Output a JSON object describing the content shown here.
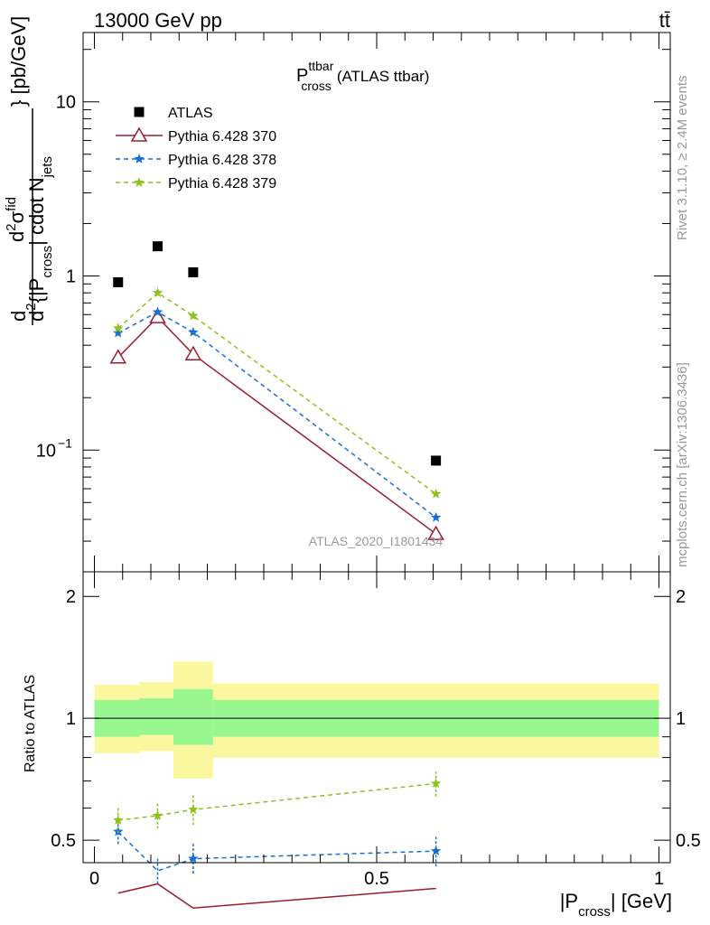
{
  "header": {
    "energy": "13000 GeV pp",
    "process": "tt̄"
  },
  "side": {
    "rivet": "Rivet 3.1.10, ≥ 2.4M events",
    "mcplots": "mcplots.cern.ch [arXiv:1306.3436]"
  },
  "plot_title": {
    "main": "P",
    "sup": "ttbar",
    "sub": "cross",
    "tail": "(ATLAS ttbar)"
  },
  "analysis_label": "ATLAS_2020_I1801434",
  "xlabel": {
    "pre": "|P",
    "sub": "cross",
    "post": "| [GeV]"
  },
  "ylabel_main": {
    "d_top": "d",
    "num_sup": "2",
    "num_sigma": "σ",
    "num_sigma_sup": "fid",
    "den_d": "d",
    "den_sup": "2",
    "den_text1": "{|P",
    "den_sub1": "cross",
    "den_text2": "| cdot N",
    "den_sub2": "jets",
    "tail": "} [pb/GeV]"
  },
  "ylabel_ratio": "Ratio to ATLAS",
  "main_ticks": {
    "major": [
      {
        "value": 0.1,
        "base": "10",
        "exp": "−1"
      },
      {
        "value": 1,
        "label": "1"
      },
      {
        "value": 10,
        "label": "10"
      }
    ]
  },
  "ratio_ticks": [
    {
      "value": 0.5,
      "label": "0.5"
    },
    {
      "value": 1,
      "label": "1"
    },
    {
      "value": 2,
      "label": "2"
    }
  ],
  "x_ticks": [
    {
      "value": 0,
      "label": "0"
    },
    {
      "value": 0.5,
      "label": "0.5"
    },
    {
      "value": 1,
      "label": "1"
    }
  ],
  "colors": {
    "atlas": "#000000",
    "p370": "#9b1b30",
    "p378": "#1a6fd6",
    "p379": "#8dc21f",
    "band_inner": "#99f78f",
    "band_outer": "#fbf79f"
  },
  "chart_data": {
    "type": "scatter",
    "x_range": [
      -0.02,
      1.02
    ],
    "main": {
      "yscale": "log",
      "ylim": [
        0.02,
        25
      ]
    },
    "ratio": {
      "yscale": "log",
      "ylim": [
        0.44,
        2.3
      ]
    },
    "legend_position": "top-left",
    "series": [
      {
        "name": "ATLAS",
        "marker": "square",
        "x": [
          0.042,
          0.112,
          0.175,
          0.605
        ],
        "y": [
          0.92,
          1.48,
          1.05,
          0.087
        ]
      },
      {
        "name": "Pythia 6.428 370",
        "marker": "triangle",
        "line": "solid",
        "x": [
          0.042,
          0.112,
          0.175,
          0.605
        ],
        "y": [
          0.34,
          0.58,
          0.355,
          0.033
        ],
        "ratio": [
          0.37,
          0.39,
          0.34,
          0.38
        ]
      },
      {
        "name": "Pythia 6.428 378",
        "marker": "star",
        "line": "dashed",
        "x": [
          0.042,
          0.112,
          0.175,
          0.605
        ],
        "y": [
          0.47,
          0.62,
          0.475,
          0.041
        ],
        "ratio": [
          0.525,
          0.42,
          0.45,
          0.47
        ],
        "ratio_err": [
          0.04,
          0.03,
          0.04,
          0.04
        ]
      },
      {
        "name": "Pythia 6.428 379",
        "marker": "star",
        "line": "dashed",
        "x": [
          0.042,
          0.112,
          0.175,
          0.605
        ],
        "y": [
          0.5,
          0.8,
          0.59,
          0.056
        ],
        "ratio": [
          0.56,
          0.575,
          0.595,
          0.69
        ],
        "ratio_err": [
          0.04,
          0.04,
          0.05,
          0.05
        ]
      }
    ],
    "ratio_bands": [
      {
        "x": [
          0.0,
          0.08
        ],
        "inner": [
          0.9,
          1.11
        ],
        "outer": [
          0.82,
          1.21
        ]
      },
      {
        "x": [
          0.08,
          0.14
        ],
        "inner": [
          0.91,
          1.12
        ],
        "outer": [
          0.83,
          1.23
        ]
      },
      {
        "x": [
          0.14,
          0.21
        ],
        "inner": [
          0.86,
          1.18
        ],
        "outer": [
          0.71,
          1.38
        ]
      },
      {
        "x": [
          0.21,
          1.0
        ],
        "inner": [
          0.9,
          1.11
        ],
        "outer": [
          0.8,
          1.22
        ]
      }
    ]
  }
}
